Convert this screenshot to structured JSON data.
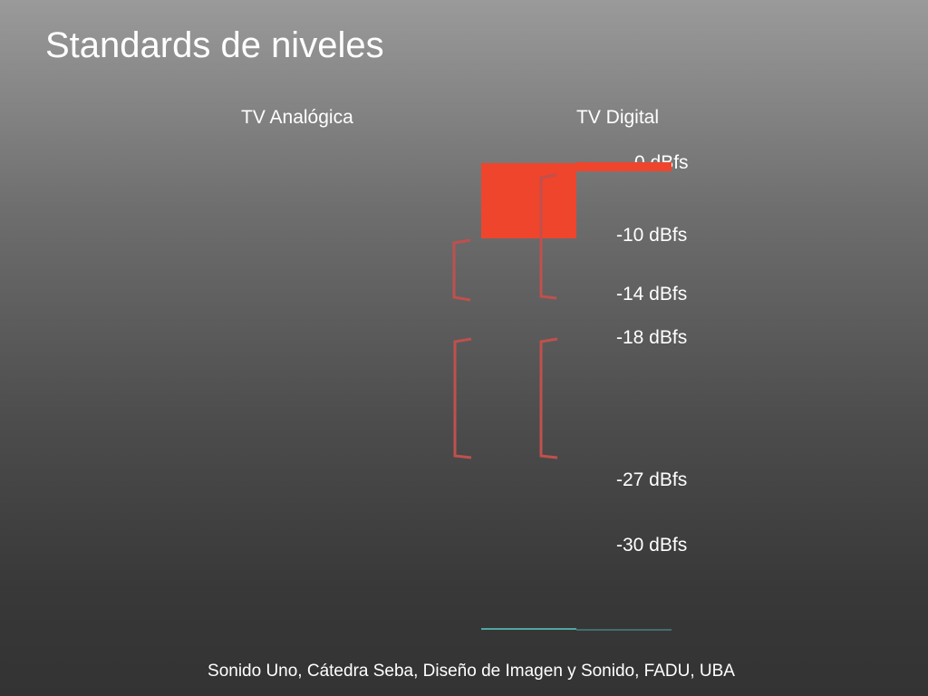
{
  "slide": {
    "title": "Standards de niveles"
  },
  "columns": {
    "analog": "TV Analógica",
    "digital": "TV Digital"
  },
  "levels": [
    "0 dBfs",
    "-10 dBfs",
    "-14 dBfs",
    "-18 dBfs",
    "-27 dBfs",
    "-30 dBfs"
  ],
  "footer": {
    "text": "Sonido Uno, Cátedra Seba, Diseño de Imagen y Sonido, FADU, UBA"
  },
  "colors": {
    "peak_fill": "#ef452c",
    "bracket": "#c0504d",
    "baseline": "#4fa6a0"
  }
}
